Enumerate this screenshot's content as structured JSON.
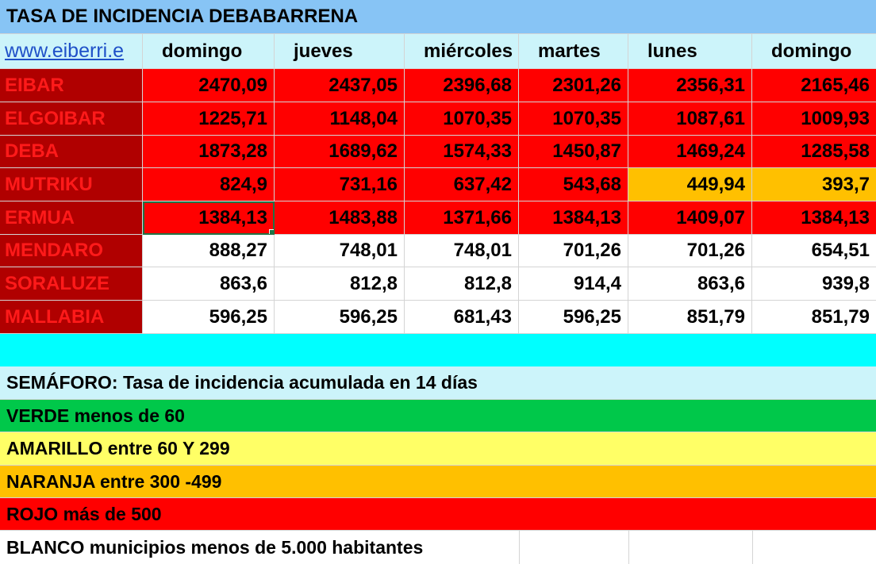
{
  "title": "TASA DE INCIDENCIA DEBABARRENA",
  "header": {
    "link": "www.eiberri.e",
    "days": [
      "domingo",
      "jueves",
      "miércoles",
      "martes",
      "lunes",
      "domingo"
    ]
  },
  "rows": [
    {
      "name": "EIBAR",
      "values": [
        "2470,09",
        "2437,05",
        "2396,68",
        "2301,26",
        "2356,31",
        "2165,46"
      ]
    },
    {
      "name": "ELGOIBAR",
      "values": [
        "1225,71",
        "1148,04",
        "1070,35",
        "1070,35",
        "1087,61",
        "1009,93"
      ]
    },
    {
      "name": "DEBA",
      "values": [
        "1873,28",
        "1689,62",
        "1574,33",
        "1450,87",
        "1469,24",
        "1285,58"
      ]
    },
    {
      "name": "MUTRIKU",
      "values": [
        "824,9",
        "731,16",
        "637,42",
        "543,68",
        "449,94",
        "393,7"
      ]
    },
    {
      "name": "ERMUA",
      "values": [
        "1384,13",
        "1483,88",
        "1371,66",
        "1384,13",
        "1409,07",
        "1384,13"
      ]
    },
    {
      "name": "MENDARO",
      "values": [
        "888,27",
        "748,01",
        "748,01",
        "701,26",
        "701,26",
        "654,51"
      ]
    },
    {
      "name": "SORALUZE",
      "values": [
        "863,6",
        "812,8",
        "812,8",
        "914,4",
        "863,6",
        "939,8"
      ]
    },
    {
      "name": "MALLABIA",
      "values": [
        "596,25",
        "596,25",
        "681,43",
        "596,25",
        "851,79",
        "851,79"
      ]
    }
  ],
  "legend": {
    "heading": "SEMÁFORO:  Tasa de incidencia acumulada en 14 días",
    "green": "VERDE menos de 60",
    "yellow": "AMARILLO entre 60 Y 299",
    "orange": "NARANJA entre 300 -499",
    "red": "ROJO más de 500",
    "white": "BLANCO municipios menos de 5.000 habitantes"
  },
  "colors": {
    "red": "#ff0000",
    "dark_red": "#b00000",
    "orange": "#ffc000",
    "green": "#00c84a",
    "yellow": "#ffff66",
    "light_blue": "#87c4f5",
    "cyan": "#00ffff"
  }
}
